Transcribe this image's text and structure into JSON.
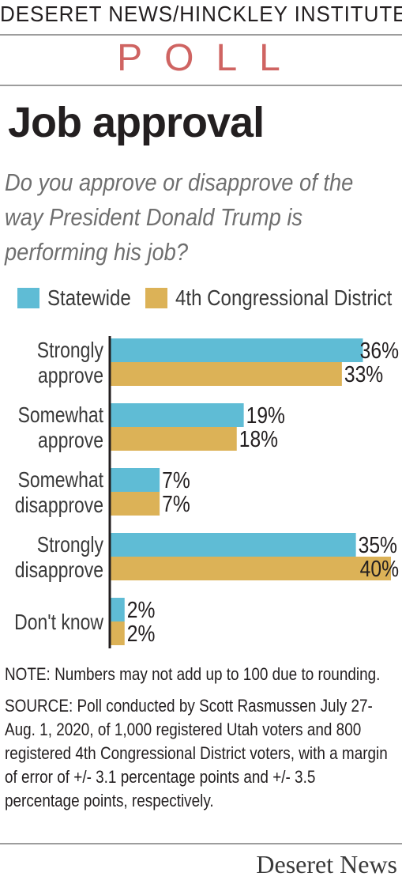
{
  "header": {
    "kicker": "DESERET NEWS/HINCKLEY INSTITUTE",
    "poll": "POLL"
  },
  "title": "Job approval",
  "question": "Do you approve or disapprove of the way President Donald Trump is performing his job?",
  "colors": {
    "statewide": "#5fbcd5",
    "district": "#dcb257",
    "axis": "#231f20",
    "poll_accent": "#cf6462",
    "rules": "#9d9d9d"
  },
  "chart_data": {
    "type": "bar",
    "orientation": "horizontal",
    "categories": [
      [
        "Strongly",
        "approve"
      ],
      [
        "Somewhat",
        "approve"
      ],
      [
        "Somewhat",
        "disapprove"
      ],
      [
        "Strongly",
        "disapprove"
      ],
      [
        "Don't know"
      ]
    ],
    "series": [
      {
        "name": "Statewide",
        "values": [
          36,
          19,
          7,
          35,
          2
        ],
        "labels": [
          "36%",
          "19%",
          "7%",
          "35%",
          "2%"
        ]
      },
      {
        "name": "4th Congressional District",
        "values": [
          33,
          18,
          7,
          40,
          2
        ],
        "labels": [
          "33%",
          "18%",
          "7%",
          "40%",
          "2%"
        ]
      }
    ],
    "xlim": [
      0,
      40
    ],
    "grid": false,
    "legend": "top"
  },
  "notes": {
    "note": "NOTE: Numbers may not add up to 100 due to rounding.",
    "source": "SOURCE: Poll conducted by Scott Rasmussen July 27-Aug. 1, 2020, of 1,000 registered Utah voters and 800 registered 4th Congressional District voters, with a margin of error of +/- 3.1 percentage points and +/- 3.5 percentage points, respectively."
  },
  "footer": {
    "logo": "Deseret News"
  }
}
